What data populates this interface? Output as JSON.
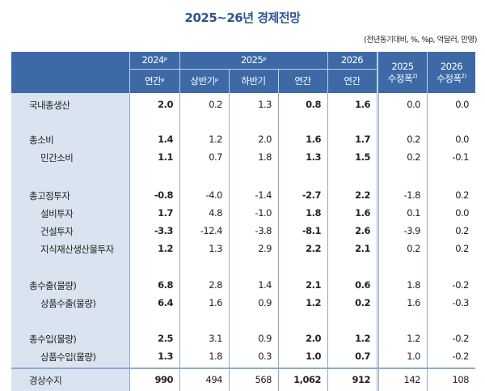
{
  "title": "2025~26년  경제전망",
  "units": "(전년동기대비, %, %p, 억달러, 만명)",
  "header": {
    "y2024": "2024",
    "y2024_sup": "P",
    "y2025": "2025",
    "y2025_sup": "P",
    "y2026": "2026",
    "rev2025_year": "2025",
    "rev2025_label": "수정폭",
    "rev2025_sup": "2)",
    "rev2026_year": "2026",
    "rev2026_label": "수정폭",
    "rev2026_sup": "2)",
    "sub_annual_2024": "연간",
    "sub_annual_2024_sup": "P",
    "sub_h1": "상반기",
    "sub_h1_sup": "P",
    "sub_h2": "하반기",
    "sub_annual_2025": "연간",
    "sub_annual_2026": "연간"
  },
  "groups": [
    {
      "rows": [
        {
          "label": "국내총생산",
          "indent": false,
          "values": [
            "2.0",
            "0.2",
            "1.3",
            "0.8",
            "1.6",
            "0.0",
            "0.0"
          ]
        }
      ]
    },
    {
      "rows": [
        {
          "label": "총소비",
          "indent": false,
          "values": [
            "1.4",
            "1.2",
            "2.0",
            "1.6",
            "1.7",
            "0.2",
            "0.0"
          ]
        },
        {
          "label": "민간소비",
          "indent": true,
          "values": [
            "1.1",
            "0.7",
            "1.8",
            "1.3",
            "1.5",
            "0.2",
            "-0.1"
          ]
        }
      ]
    },
    {
      "rows": [
        {
          "label": "총고정투자",
          "indent": false,
          "values": [
            "-0.8",
            "-4.0",
            "-1.4",
            "-2.7",
            "2.2",
            "-1.8",
            "0.2"
          ]
        },
        {
          "label": "설비투자",
          "indent": true,
          "values": [
            "1.7",
            "4.8",
            "-1.0",
            "1.8",
            "1.6",
            "0.1",
            "0.0"
          ]
        },
        {
          "label": "건설투자",
          "indent": true,
          "values": [
            "-3.3",
            "-12.4",
            "-3.8",
            "-8.1",
            "2.6",
            "-3.9",
            "0.2"
          ]
        },
        {
          "label": "지식재산생산물투자",
          "indent": true,
          "values": [
            "1.2",
            "1.3",
            "2.9",
            "2.2",
            "2.1",
            "0.2",
            "0.2"
          ]
        }
      ]
    },
    {
      "rows": [
        {
          "label": "총수출(물량)",
          "indent": false,
          "values": [
            "6.8",
            "2.8",
            "1.4",
            "2.1",
            "0.6",
            "1.8",
            "-0.2"
          ]
        },
        {
          "label": "상품수출(물량)",
          "indent": true,
          "values": [
            "6.4",
            "1.6",
            "0.9",
            "1.2",
            "0.2",
            "1.6",
            "-0.3"
          ]
        }
      ]
    },
    {
      "rows": [
        {
          "label": "총수입(물량)",
          "indent": false,
          "values": [
            "2.5",
            "3.1",
            "0.9",
            "2.0",
            "1.2",
            "1.2",
            "-0.2"
          ]
        },
        {
          "label": "상품수입(물량)",
          "indent": true,
          "values": [
            "1.3",
            "1.8",
            "0.3",
            "1.0",
            "0.7",
            "1.0",
            "-0.2"
          ]
        }
      ]
    }
  ],
  "current_account": {
    "label": "경상수지",
    "values": [
      "990",
      "494",
      "568",
      "1,062",
      "912",
      "142",
      "108"
    ]
  },
  "colors": {
    "header_bg": "#3d6aa6",
    "label_bg": "#dae4f1",
    "title": "#2d5591"
  }
}
